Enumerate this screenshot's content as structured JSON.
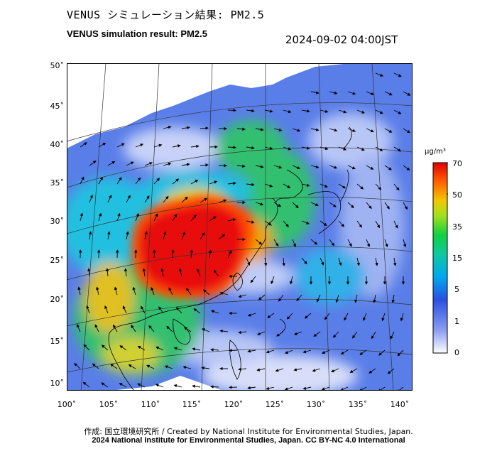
{
  "header": {
    "title_jp": "VENUS シミュレーション結果: PM2.5",
    "title_en": "VENUS simulation result: PM2.5",
    "datetime": "2024-09-02 04:00JST"
  },
  "map": {
    "lon_range": [
      100,
      141
    ],
    "lat_range": [
      9,
      51
    ],
    "lat_labels": [
      "50˚",
      "45˚",
      "40˚",
      "35˚",
      "30˚",
      "25˚",
      "20˚",
      "15˚",
      "10˚"
    ],
    "lat_values": [
      50,
      45,
      40,
      35,
      30,
      25,
      20,
      15,
      10
    ],
    "lon_labels": [
      "100˚",
      "105˚",
      "110˚",
      "115˚",
      "120˚",
      "125˚",
      "130˚",
      "135˚",
      "140˚"
    ],
    "lon_values": [
      100,
      105,
      110,
      115,
      120,
      125,
      130,
      135,
      140
    ],
    "field": "PM2.5 concentration",
    "overlay": "wind vectors"
  },
  "colorbar": {
    "unit": "μg/m³",
    "tick_labels": [
      "70",
      "50",
      "35",
      "15",
      "5",
      "1",
      "0"
    ],
    "colors": [
      "#ffffff",
      "#3050e0",
      "#00b0f0",
      "#10d060",
      "#a0e020",
      "#f0c000",
      "#ff6000",
      "#e00000"
    ]
  },
  "footer": {
    "credit_jp": "作成: 国立環境研究所 / Created by National Institute for Environmental Studies, Japan.",
    "credit_copyright": "2024 National Institute for Environmental Studies, Japan. CC BY-NC 4.0 International"
  }
}
